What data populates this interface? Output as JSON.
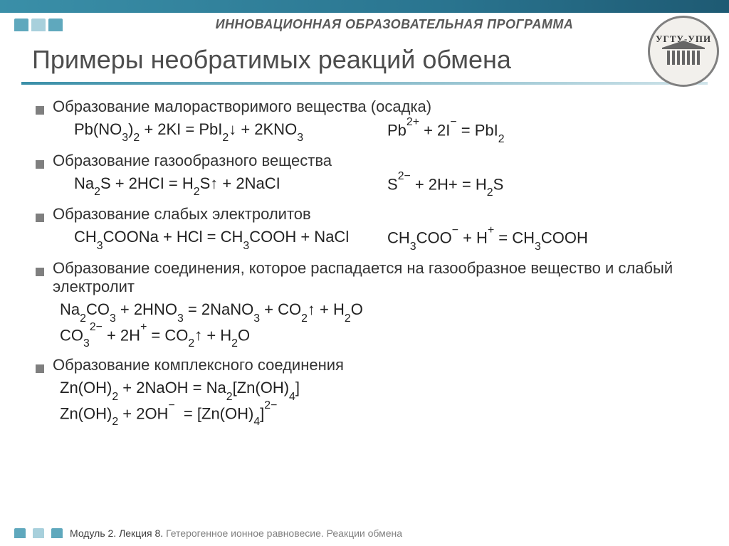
{
  "header_title": "ИННОВАЦИОННАЯ ОБРАЗОВАТЕЛЬНАЯ ПРОГРАММА",
  "logo_text": "УГТУ-УПИ",
  "slide_title": "Примеры необратимых реакций обмена",
  "sections": [
    {
      "bullet": "Образование малорастворимого вещества (осадка)",
      "eq_rows": [
        {
          "left": "Pb(NO<sub>3</sub>)<sub>2</sub> + 2KI = PbI<sub>2</sub><span class='arrow-down'>↓</span> + 2KNO<sub>3</sub>",
          "right": "Pb<sup>2+</sup> + 2I<sup>−</sup> = PbI<sub>2</sub>"
        }
      ]
    },
    {
      "bullet": "Образование газообразного вещества",
      "eq_rows": [
        {
          "left": "Na<sub>2</sub>S + 2HCI = H<sub>2</sub>S<span class='arrow-up'>↑</span> + 2NaCI",
          "right": "S<sup>2−</sup> + 2H+ = H<sub>2</sub>S"
        }
      ]
    },
    {
      "bullet": "Образование слабых электролитов",
      "eq_rows": [
        {
          "left": "CH<sub>3</sub>COONa + HCl = CH<sub>3</sub>COOH + NaCl",
          "right": "CH<sub>3</sub>COO<sup>−</sup> + H<sup>+</sup> = CH<sub>3</sub>COOH"
        }
      ]
    },
    {
      "bullet": "Образование соединения, которое распадается на газообразное вещество и слабый электролит",
      "eq_full": [
        "Na<sub>2</sub>CO<sub>3</sub> + 2HNO<sub>3</sub> = 2NaNO<sub>3</sub> + CO<sub>2</sub><span class='arrow-up'>↑</span> + H<sub>2</sub>O",
        "CO<sub>3</sub><sup>2−</sup> + 2H<sup>+</sup> = CO<sub>2</sub><span class='arrow-up'>↑</span> + H<sub>2</sub>O"
      ]
    },
    {
      "bullet": "Образование комплексного соединения",
      "eq_full": [
        "Zn(OH)<sub>2</sub> + 2NaOH = Na<sub>2</sub>[Zn(OH)<sub>4</sub>]",
        "Zn(OH)<sub>2</sub> + 2OH<sup>−</sup>&nbsp; = [Zn(OH)<sub>4</sub>]<sup>2−</sup>"
      ]
    }
  ],
  "footer_module": "Модуль 2. Лекция 8.",
  "footer_topic": "Гетерогенное ионное равновесие. Реакции обмена",
  "colors": {
    "topbar_grad_start": "#3a8fa8",
    "topbar_grad_end": "#1e5a73",
    "bullet": "#7f7f7f",
    "title": "#4d4d4d",
    "body_text": "#333333",
    "footer_gray": "#808080"
  }
}
